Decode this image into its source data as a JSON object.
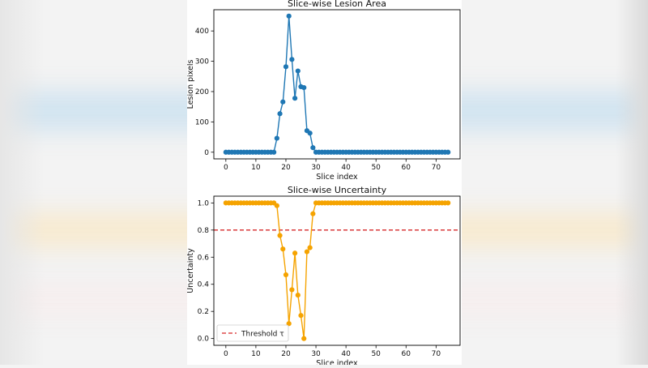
{
  "chart_data": [
    {
      "type": "line",
      "title": "Slice-wise Lesion Area",
      "xlabel": "Slice index",
      "ylabel": "Lesion pixels",
      "xlim": [
        -4,
        78
      ],
      "ylim": [
        -22,
        470
      ],
      "xticks": [
        0,
        10,
        20,
        30,
        40,
        50,
        60,
        70
      ],
      "yticks": [
        0,
        100,
        200,
        300,
        400
      ],
      "grid": false,
      "series": [
        {
          "color": "#1f77b4",
          "x": [
            0,
            1,
            2,
            3,
            4,
            5,
            6,
            7,
            8,
            9,
            10,
            11,
            12,
            13,
            14,
            15,
            16,
            17,
            18,
            19,
            20,
            21,
            22,
            23,
            24,
            25,
            26,
            27,
            28,
            29,
            30,
            31,
            32,
            33,
            34,
            35,
            36,
            37,
            38,
            39,
            40,
            41,
            42,
            43,
            44,
            45,
            46,
            47,
            48,
            49,
            50,
            51,
            52,
            53,
            54,
            55,
            56,
            57,
            58,
            59,
            60,
            61,
            62,
            63,
            64,
            65,
            66,
            67,
            68,
            69,
            70,
            71,
            72,
            73,
            74
          ],
          "y": [
            0,
            0,
            0,
            0,
            0,
            0,
            0,
            0,
            0,
            0,
            0,
            0,
            0,
            0,
            0,
            0,
            0,
            46,
            127,
            166,
            282,
            449,
            306,
            178,
            268,
            216,
            213,
            71,
            63,
            15,
            0,
            0,
            0,
            0,
            0,
            0,
            0,
            0,
            0,
            0,
            0,
            0,
            0,
            0,
            0,
            0,
            0,
            0,
            0,
            0,
            0,
            0,
            0,
            0,
            0,
            0,
            0,
            0,
            0,
            0,
            0,
            0,
            0,
            0,
            0,
            0,
            0,
            0,
            0,
            0,
            0,
            0,
            0,
            0,
            0
          ]
        }
      ]
    },
    {
      "type": "line",
      "title": "Slice-wise Uncertainty",
      "xlabel": "Slice index",
      "ylabel": "Uncertainty",
      "xlim": [
        -4,
        78
      ],
      "ylim": [
        -0.05,
        1.05
      ],
      "xticks": [
        0,
        10,
        20,
        30,
        40,
        50,
        60,
        70
      ],
      "yticks": [
        0.0,
        0.2,
        0.4,
        0.6,
        0.8,
        1.0
      ],
      "grid": false,
      "legend": {
        "position": "lower-left",
        "entries": [
          "Threshold τ"
        ]
      },
      "threshold": {
        "value": 0.8,
        "label": "Threshold τ",
        "color": "#d62728",
        "style": "dashed"
      },
      "series": [
        {
          "color": "#f5a300",
          "x": [
            0,
            1,
            2,
            3,
            4,
            5,
            6,
            7,
            8,
            9,
            10,
            11,
            12,
            13,
            14,
            15,
            16,
            17,
            18,
            19,
            20,
            21,
            22,
            23,
            24,
            25,
            26,
            27,
            28,
            29,
            30,
            31,
            32,
            33,
            34,
            35,
            36,
            37,
            38,
            39,
            40,
            41,
            42,
            43,
            44,
            45,
            46,
            47,
            48,
            49,
            50,
            51,
            52,
            53,
            54,
            55,
            56,
            57,
            58,
            59,
            60,
            61,
            62,
            63,
            64,
            65,
            66,
            67,
            68,
            69,
            70,
            71,
            72,
            73,
            74
          ],
          "y": [
            1,
            1,
            1,
            1,
            1,
            1,
            1,
            1,
            1,
            1,
            1,
            1,
            1,
            1,
            1,
            1,
            1,
            0.98,
            0.76,
            0.66,
            0.47,
            0.11,
            0.36,
            0.63,
            0.32,
            0.17,
            0.0,
            0.64,
            0.67,
            0.92,
            1,
            1,
            1,
            1,
            1,
            1,
            1,
            1,
            1,
            1,
            1,
            1,
            1,
            1,
            1,
            1,
            1,
            1,
            1,
            1,
            1,
            1,
            1,
            1,
            1,
            1,
            1,
            1,
            1,
            1,
            1,
            1,
            1,
            1,
            1,
            1,
            1,
            1,
            1,
            1,
            1,
            1,
            1,
            1,
            1
          ]
        }
      ]
    }
  ]
}
